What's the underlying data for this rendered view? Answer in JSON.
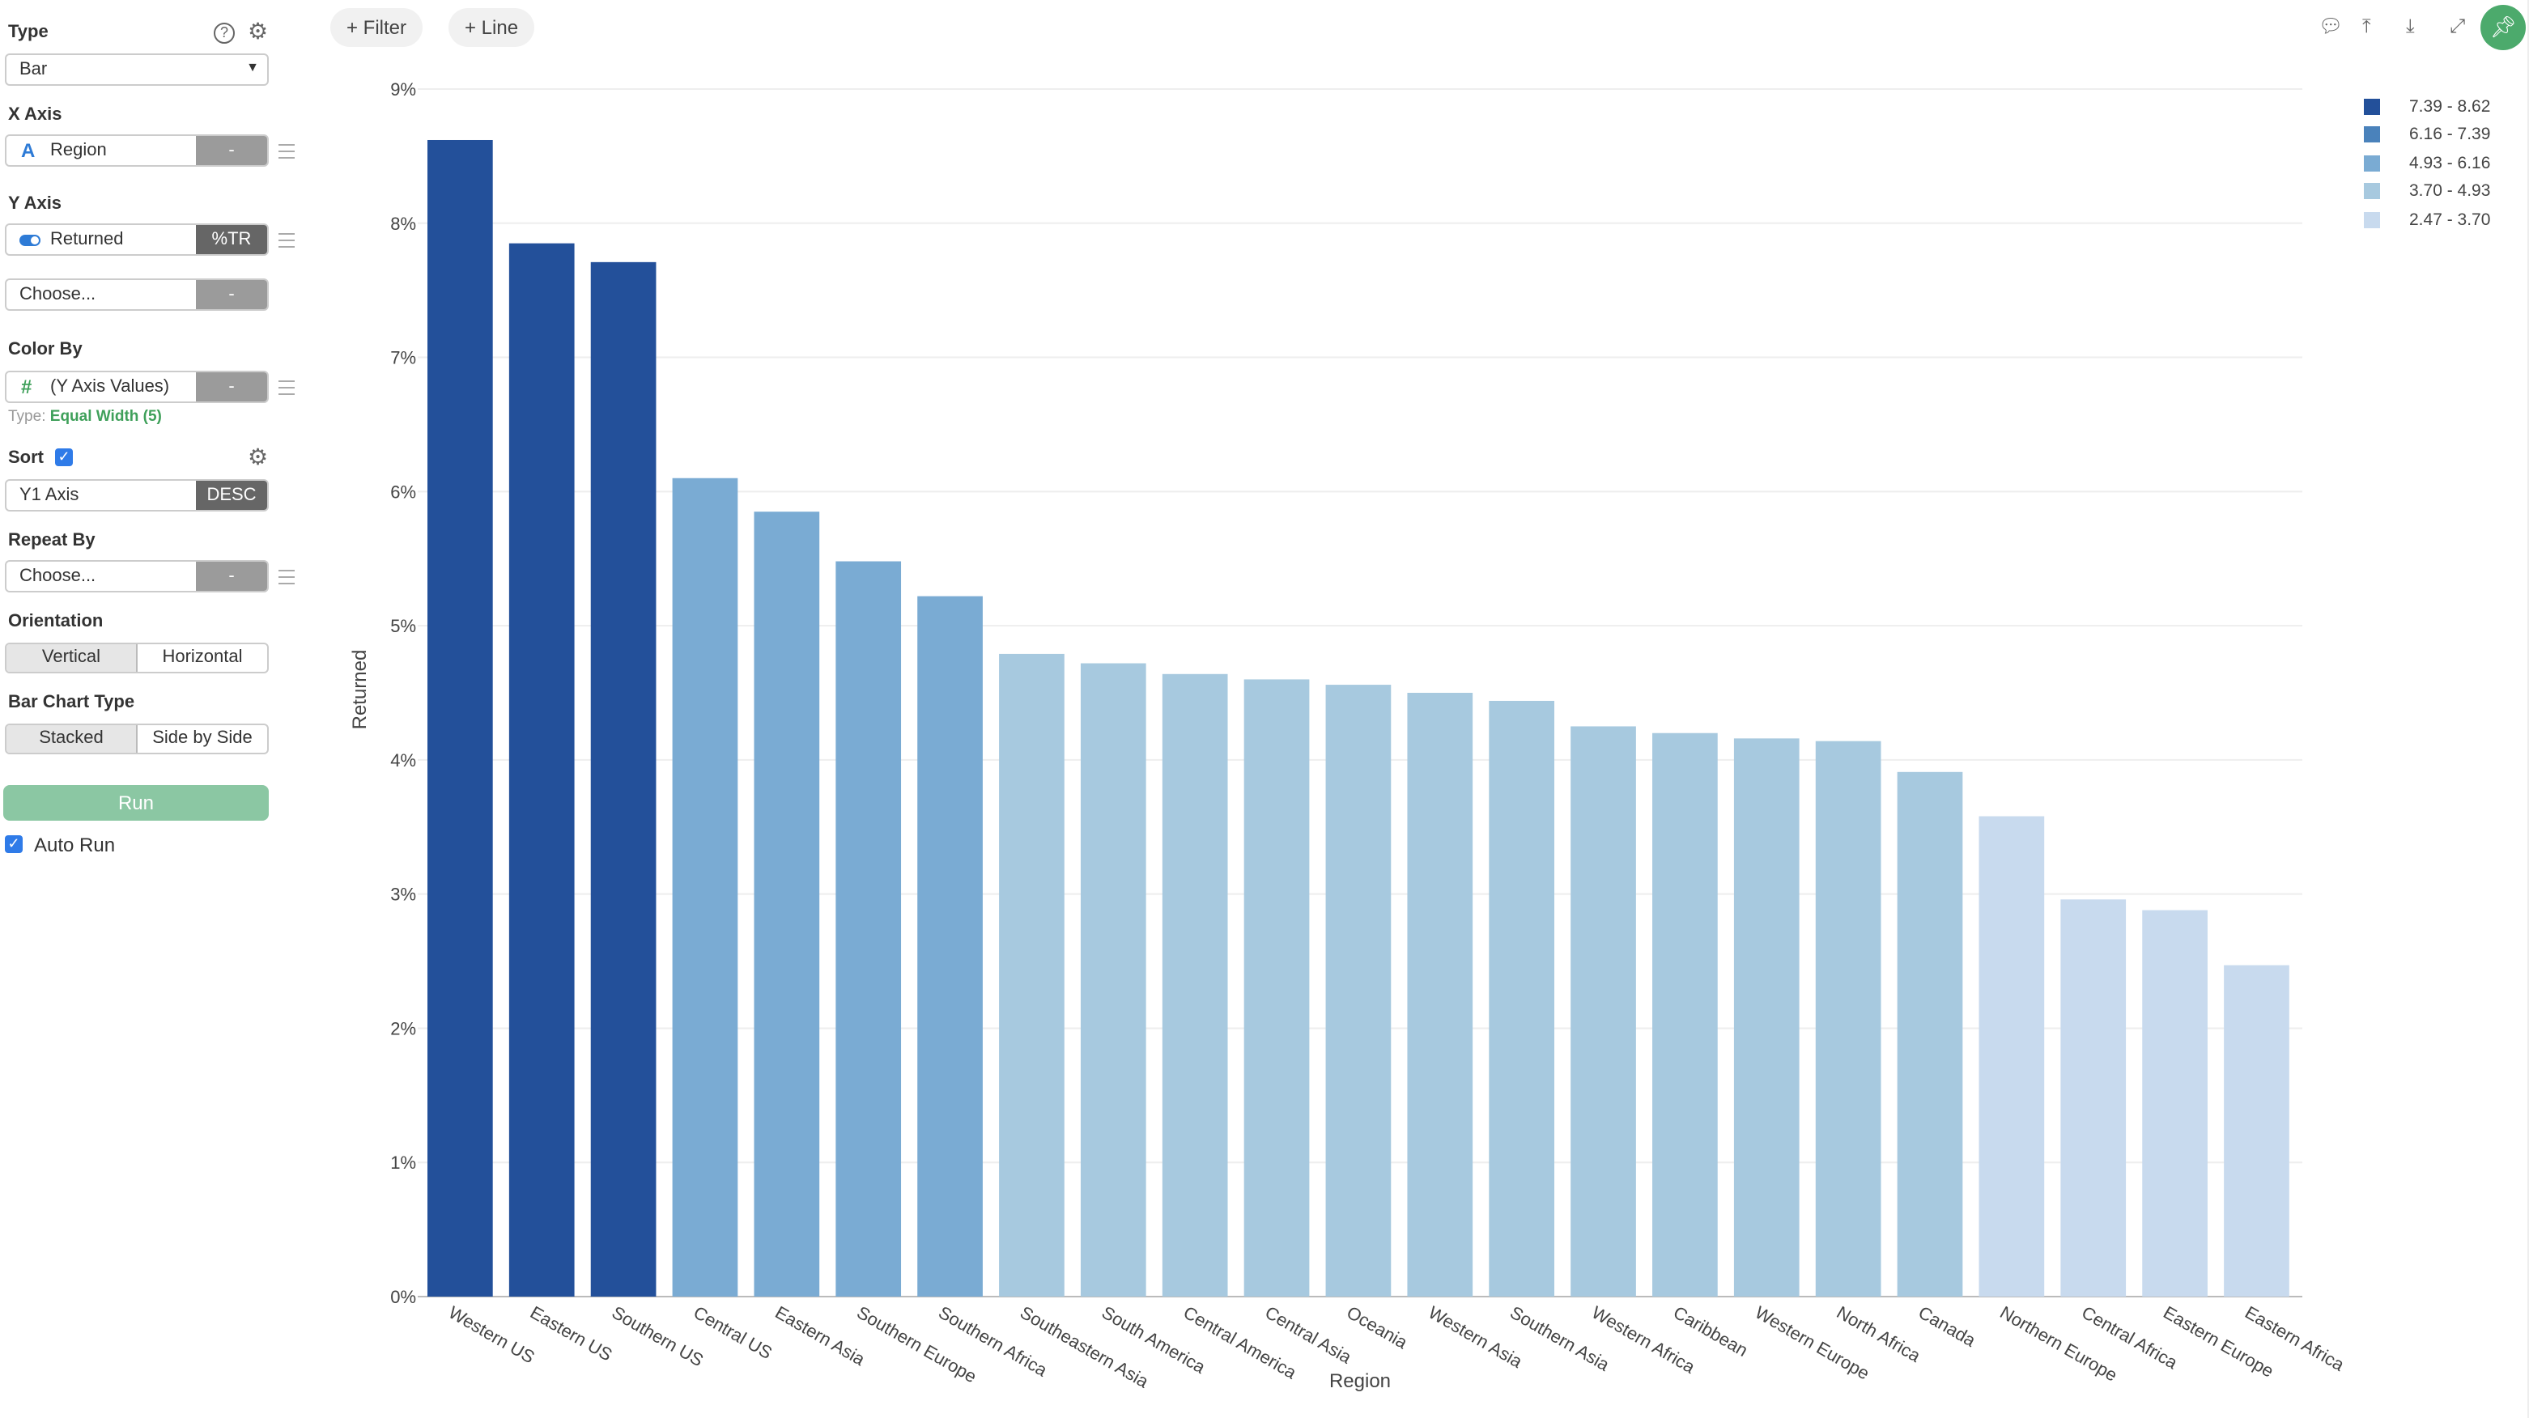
{
  "sidebar": {
    "type_label": "Type",
    "type_value": "Bar",
    "x_axis_label": "X Axis",
    "x_axis_value": "Region",
    "x_axis_btn": "-",
    "y_axis_label": "Y Axis",
    "y_axis_value": "Returned",
    "y_axis_btn": "%TR",
    "y_axis2_value": "Choose...",
    "y_axis2_btn": "-",
    "color_by_label": "Color By",
    "color_by_value": "(Y Axis Values)",
    "color_by_btn": "-",
    "color_type_prefix": "Type:",
    "color_type_value": "Equal Width (5)",
    "sort_label": "Sort",
    "sort_value": "Y1 Axis",
    "sort_btn": "DESC",
    "repeat_by_label": "Repeat By",
    "repeat_by_value": "Choose...",
    "repeat_by_btn": "-",
    "orientation_label": "Orientation",
    "orientation_options": [
      "Vertical",
      "Horizontal"
    ],
    "bar_type_label": "Bar Chart Type",
    "bar_type_options": [
      "Stacked",
      "Side by Side"
    ],
    "run_label": "Run",
    "auto_run_label": "Auto Run"
  },
  "toolbar": {
    "filter_label": "+ Filter",
    "line_label": "+ Line"
  },
  "chart_data": {
    "type": "bar",
    "xlabel": "Region",
    "ylabel": "Returned",
    "ylim": [
      0,
      9
    ],
    "yticks": [
      "0%",
      "1%",
      "2%",
      "3%",
      "4%",
      "5%",
      "6%",
      "7%",
      "8%",
      "9%"
    ],
    "categories": [
      "Western US",
      "Eastern US",
      "Southern US",
      "Central US",
      "Eastern Asia",
      "Southern Europe",
      "Southern Africa",
      "Southeastern Asia",
      "South America",
      "Central America",
      "Central Asia",
      "Oceania",
      "Western Asia",
      "Southern Asia",
      "Western Africa",
      "Caribbean",
      "Western Europe",
      "North Africa",
      "Canada",
      "Northern Europe",
      "Central Africa",
      "Eastern Europe",
      "Eastern Africa"
    ],
    "values": [
      8.62,
      7.85,
      7.71,
      6.1,
      5.85,
      5.48,
      5.22,
      4.79,
      4.72,
      4.64,
      4.6,
      4.56,
      4.5,
      4.44,
      4.25,
      4.2,
      4.16,
      4.14,
      3.91,
      3.58,
      2.96,
      2.88,
      2.47
    ],
    "legend": [
      {
        "label": "7.39 - 8.62",
        "color": "#23509a",
        "min": 7.39
      },
      {
        "label": "6.16 - 7.39",
        "color": "#4a82bb",
        "min": 6.16
      },
      {
        "label": "4.93 - 6.16",
        "color": "#7aabd3",
        "min": 4.93
      },
      {
        "label": "3.70 - 4.93",
        "color": "#a7c9df",
        "min": 3.7
      },
      {
        "label": "2.47 - 3.70",
        "color": "#c8daee",
        "min": 2.47
      }
    ],
    "legend_position": "top-right",
    "grid": true
  }
}
